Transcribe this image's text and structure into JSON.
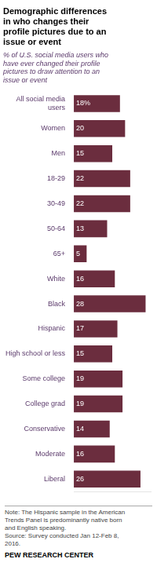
{
  "chart_data": {
    "type": "bar",
    "orientation": "horizontal",
    "title": "Demographic differences\nin who changes their\nprofile pictures due to an\nissue or event",
    "subtitle": "% of U.S. social media users who\nhave ever changed their profile\npictures to draw attention to an\nissue or event",
    "note": "Note: The Hispanic sample in the American\nTrends Panel is predominantly native born\nand English speaking.\nSource: Survey conducted Jan 12-Feb 8,\n2016.",
    "footer": "PEW RESEARCH CENTER",
    "categories": [
      "All social media\nusers",
      "Women",
      "Men",
      "18-29",
      "30-49",
      "50-64",
      "65+",
      "White",
      "Black",
      "Hispanic",
      "High school or less",
      "Some college",
      "College grad",
      "Conservative",
      "Moderate",
      "Liberal"
    ],
    "values": [
      18,
      20,
      15,
      22,
      22,
      13,
      5,
      16,
      28,
      17,
      15,
      19,
      19,
      14,
      16,
      26
    ],
    "value_labels": [
      "18%",
      "20",
      "15",
      "22",
      "22",
      "13",
      "5",
      "16",
      "28",
      "17",
      "15",
      "19",
      "19",
      "14",
      "16",
      "26"
    ],
    "color": "#6B2D3E",
    "xlim": [
      0,
      30
    ],
    "grid": false,
    "data_labels": true,
    "tick_labels": "y"
  }
}
